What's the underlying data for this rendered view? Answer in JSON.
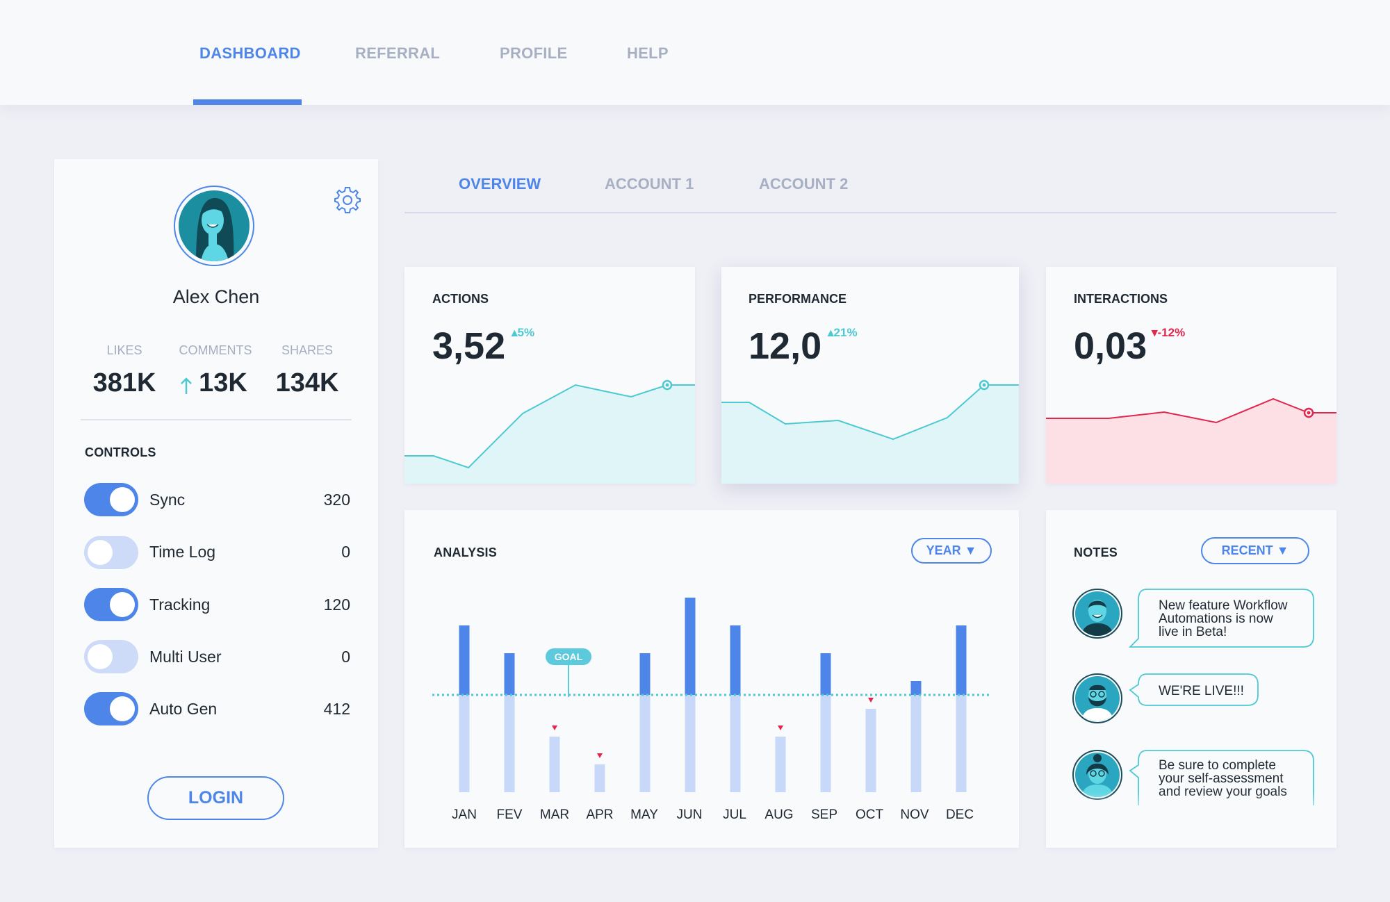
{
  "nav": {
    "tabs": [
      "DASHBOARD",
      "REFERRAL",
      "PROFILE",
      "HELP"
    ]
  },
  "profile": {
    "name": "Alex Chen",
    "stats": [
      {
        "label": "LIKES",
        "value": "381K"
      },
      {
        "label": "COMMENTS",
        "value": "13K",
        "trend": "up"
      },
      {
        "label": "SHARES",
        "value": "134K"
      }
    ],
    "controls_title": "CONTROLS",
    "controls": [
      {
        "label": "Sync",
        "value": "320",
        "on": true
      },
      {
        "label": "Time Log",
        "value": "0",
        "on": false
      },
      {
        "label": "Tracking",
        "value": "120",
        "on": true
      },
      {
        "label": "Multi User",
        "value": "0",
        "on": false
      },
      {
        "label": "Auto Gen",
        "value": "412",
        "on": true
      }
    ],
    "login_label": "LOGIN"
  },
  "subtabs": [
    "OVERVIEW",
    "ACCOUNT 1",
    "ACCOUNT 2"
  ],
  "metrics": [
    {
      "title": "ACTIONS",
      "value": "3,52",
      "delta": "5%",
      "direction": "up",
      "color": "#4cc9d2",
      "fill": "#dff5f7"
    },
    {
      "title": "PERFORMANCE",
      "value": "12,0",
      "delta": "21%",
      "direction": "up",
      "color": "#4cc9d2",
      "fill": "#dff5f7"
    },
    {
      "title": "INTERACTIONS",
      "value": "0,03",
      "delta": "-12%",
      "direction": "down",
      "color": "#e2264d",
      "fill": "#fde0e6"
    }
  ],
  "analysis": {
    "title": "ANALYSIS",
    "filter_label": "YEAR",
    "goal_label": "GOAL"
  },
  "chart_data": {
    "type": "bar",
    "title": "ANALYSIS",
    "categories": [
      "JAN",
      "FEV",
      "MAR",
      "APR",
      "MAY",
      "JUN",
      "JUL",
      "AUG",
      "SEP",
      "OCT",
      "NOV",
      "DEC"
    ],
    "values": [
      6,
      5,
      2,
      1,
      5,
      7,
      6,
      2,
      5,
      3,
      4,
      6
    ],
    "goal": 3.5,
    "ylim": [
      0,
      7.5
    ],
    "colors": {
      "above_goal": "#4d86e8",
      "below_goal": "#c8d8f8",
      "goal_line": "#4cc9d2",
      "miss_marker": "#e2264d"
    }
  },
  "notes": {
    "title": "NOTES",
    "filter_label": "RECENT",
    "items": [
      {
        "lines": [
          "New feature Workflow",
          "Automations is now",
          "live in Beta!"
        ]
      },
      {
        "lines": [
          "WE'RE LIVE!!!"
        ]
      },
      {
        "lines": [
          "Be sure to complete",
          "your self-assessment",
          "and review your goals"
        ]
      }
    ]
  }
}
